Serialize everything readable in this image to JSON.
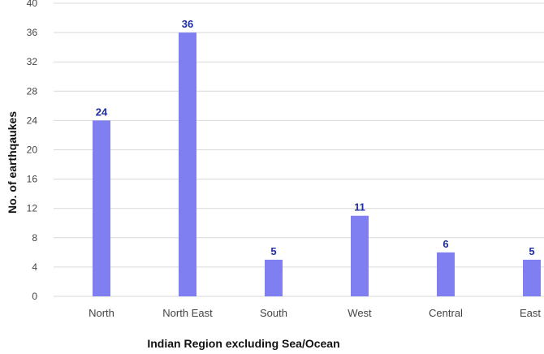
{
  "chart_data": {
    "type": "bar",
    "title": "",
    "xlabel": "Indian Region excluding Sea/Ocean",
    "ylabel": "No. of earthqaukes",
    "categories": [
      "North",
      "North East",
      "South",
      "West",
      "Central",
      "East"
    ],
    "values": [
      24,
      36,
      5,
      11,
      6,
      5
    ],
    "data_labels": [
      "24",
      "36",
      "5",
      "11",
      "6",
      "5"
    ],
    "ylim": [
      0,
      40
    ],
    "yticks": [
      "0",
      "4",
      "8",
      "12",
      "16",
      "20",
      "24",
      "28",
      "32",
      "36",
      "40"
    ],
    "grid": true,
    "legend": "none",
    "bar_color": "#7f7ff2",
    "label_color": "#1f2fa0"
  }
}
